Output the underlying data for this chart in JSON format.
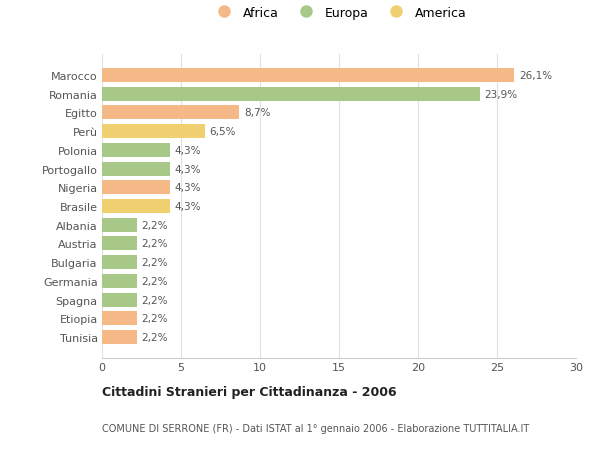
{
  "categories": [
    "Tunisia",
    "Etiopia",
    "Spagna",
    "Germania",
    "Bulgaria",
    "Austria",
    "Albania",
    "Brasile",
    "Nigeria",
    "Portogallo",
    "Polonia",
    "Perù",
    "Egitto",
    "Romania",
    "Marocco"
  ],
  "values": [
    2.2,
    2.2,
    2.2,
    2.2,
    2.2,
    2.2,
    2.2,
    4.3,
    4.3,
    4.3,
    4.3,
    6.5,
    8.7,
    23.9,
    26.1
  ],
  "colors": [
    "#f5b887",
    "#f5b887",
    "#a8c888",
    "#a8c888",
    "#a8c888",
    "#a8c888",
    "#a8c888",
    "#f0d070",
    "#f5b887",
    "#a8c888",
    "#a8c888",
    "#f0d070",
    "#f5b887",
    "#a8c888",
    "#f5b887"
  ],
  "labels": [
    "2,2%",
    "2,2%",
    "2,2%",
    "2,2%",
    "2,2%",
    "2,2%",
    "2,2%",
    "4,3%",
    "4,3%",
    "4,3%",
    "4,3%",
    "6,5%",
    "8,7%",
    "23,9%",
    "26,1%"
  ],
  "legend": [
    {
      "label": "Africa",
      "color": "#f5b887"
    },
    {
      "label": "Europa",
      "color": "#a8c888"
    },
    {
      "label": "America",
      "color": "#f0d070"
    }
  ],
  "xlim": [
    0,
    30
  ],
  "xticks": [
    0,
    5,
    10,
    15,
    20,
    25,
    30
  ],
  "title": "Cittadini Stranieri per Cittadinanza - 2006",
  "subtitle": "COMUNE DI SERRONE (FR) - Dati ISTAT al 1° gennaio 2006 - Elaborazione TUTTITALIA.IT",
  "background_color": "#ffffff",
  "grid_color": "#e0e0e0"
}
